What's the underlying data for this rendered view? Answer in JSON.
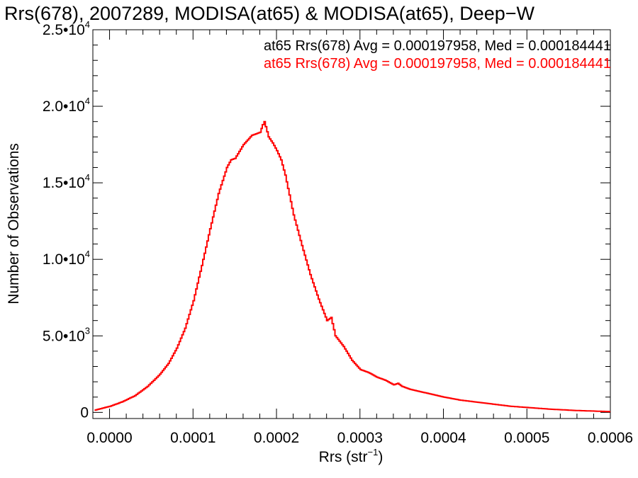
{
  "chart_data": {
    "type": "histogram",
    "title": "Rrs(678), 2007289, MODISA(at65) & MODISA(at65), Deep−W",
    "xlabel": "Rrs (str",
    "xlabel_sup": "−1",
    "xlabel_end": ")",
    "ylabel": "Number of Observations",
    "xlim": [
      -2e-05,
      0.0006
    ],
    "ylim": [
      -400,
      25000
    ],
    "x_ticks": [
      {
        "value": 0.0,
        "label": "0.0000"
      },
      {
        "value": 0.0001,
        "label": "0.0001"
      },
      {
        "value": 0.0002,
        "label": "0.0002"
      },
      {
        "value": 0.0003,
        "label": "0.0003"
      },
      {
        "value": 0.0004,
        "label": "0.0004"
      },
      {
        "value": 0.0005,
        "label": "0.0005"
      },
      {
        "value": 0.0006,
        "label": "0.0006"
      }
    ],
    "y_ticks": [
      {
        "value": 0,
        "mant": "0",
        "exp": ""
      },
      {
        "value": 5000,
        "mant": "5.0•10",
        "exp": "3"
      },
      {
        "value": 10000,
        "mant": "1.0•10",
        "exp": "4"
      },
      {
        "value": 15000,
        "mant": "1.5•10",
        "exp": "4"
      },
      {
        "value": 20000,
        "mant": "2.0•10",
        "exp": "4"
      },
      {
        "value": 25000,
        "mant": "2.5•10",
        "exp": "4"
      }
    ],
    "legend_position": "top-right",
    "annotations": [
      {
        "text": "at65 Rrs(678) Avg = 0.000197958, Med = 0.000184441",
        "color": "#000000"
      },
      {
        "text": "at65 Rrs(678) Avg = 0.000197958, Med = 0.000184441",
        "color": "#ff0000"
      }
    ],
    "series": [
      {
        "color": "#ff0000",
        "x": [
          -1.8e-05,
          0.0,
          1.5e-05,
          3e-05,
          4.5e-05,
          6e-05,
          7e-05,
          8e-05,
          9e-05,
          0.0001,
          0.00011,
          0.00012,
          0.00013,
          0.00014,
          0.000145,
          0.00015,
          0.00016,
          0.00017,
          0.000175,
          0.00018,
          0.000183,
          0.000185,
          0.00019,
          0.000195,
          0.0002,
          0.000205,
          0.00021,
          0.000215,
          0.00022,
          0.00023,
          0.00024,
          0.00025,
          0.00026,
          0.000265,
          0.00027,
          0.00028,
          0.00029,
          0.0003,
          0.00031,
          0.00032,
          0.00033,
          0.00034,
          0.000345,
          0.00035,
          0.00036,
          0.00038,
          0.0004,
          0.00042,
          0.00045,
          0.00048,
          0.0005,
          0.00053,
          0.00056,
          0.0006
        ],
        "y": [
          150,
          400,
          700,
          1100,
          1700,
          2500,
          3200,
          4200,
          5500,
          7300,
          9600,
          12000,
          14300,
          16000,
          16500,
          16600,
          17500,
          18100,
          18200,
          18300,
          18800,
          19000,
          18000,
          17600,
          17100,
          16500,
          15500,
          14200,
          12900,
          10900,
          9000,
          7400,
          6000,
          6200,
          5000,
          4300,
          3400,
          2800,
          2600,
          2300,
          2100,
          1800,
          1900,
          1700,
          1500,
          1250,
          1000,
          800,
          600,
          400,
          320,
          200,
          120,
          50
        ]
      }
    ]
  }
}
